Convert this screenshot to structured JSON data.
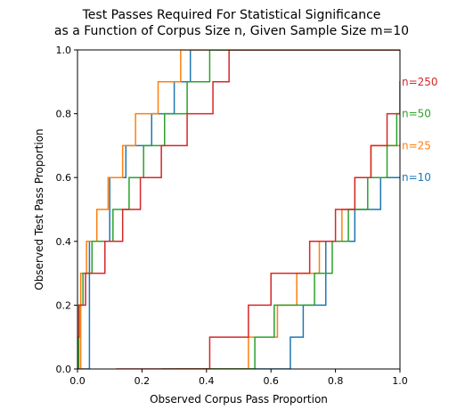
{
  "chart_data": {
    "type": "line",
    "title": "Test Passes Required For Statistical Significance",
    "subtitle": "as a Function of Corpus Size n, Given Sample Size m=10",
    "xlabel": "Observed Corpus Pass Proportion",
    "ylabel": "Observed Test Pass Proportion",
    "xlim": [
      0.0,
      1.0
    ],
    "ylim": [
      0.0,
      1.0
    ],
    "xticks": [
      "0.0",
      "0.2",
      "0.4",
      "0.6",
      "0.8",
      "1.0"
    ],
    "yticks": [
      "0.0",
      "0.2",
      "0.4",
      "0.6",
      "0.8",
      "1.0"
    ],
    "grid": false,
    "legend": "inline labels at right edge",
    "series": [
      {
        "name": "n=10",
        "color": "#1f77b4",
        "upper": {
          "breaks": [
            0.037,
            0.1,
            0.15,
            0.23,
            0.3,
            0.35
          ],
          "levels": [
            0.4,
            0.6,
            0.7,
            0.8,
            0.9,
            1.0
          ]
        },
        "lower": {
          "breaks": [
            0.54,
            0.66,
            0.7,
            0.77,
            0.86,
            0.94
          ],
          "levels": [
            0.0,
            0.1,
            0.2,
            0.4,
            0.5,
            0.6
          ]
        }
      },
      {
        "name": "n=25",
        "color": "#ff7f0e",
        "upper": {
          "breaks": [
            0.01,
            0.028,
            0.06,
            0.095,
            0.14,
            0.18,
            0.25,
            0.32,
            0.38
          ],
          "levels": [
            0.3,
            0.4,
            0.5,
            0.6,
            0.7,
            0.8,
            0.9,
            1.0,
            1.0
          ]
        },
        "lower": {
          "breaks": [
            0.45,
            0.53,
            0.62,
            0.68,
            0.75,
            0.82,
            0.86,
            0.91,
            0.975
          ],
          "levels": [
            0.0,
            0.1,
            0.2,
            0.3,
            0.4,
            0.5,
            0.6,
            0.7,
            0.7
          ]
        }
      },
      {
        "name": "n=50",
        "color": "#2ca02c",
        "upper": {
          "breaks": [
            0.004,
            0.017,
            0.045,
            0.11,
            0.16,
            0.205,
            0.27,
            0.34,
            0.41
          ],
          "levels": [
            0.2,
            0.3,
            0.4,
            0.5,
            0.6,
            0.7,
            0.8,
            0.9,
            1.0
          ]
        },
        "lower": {
          "breaks": [
            0.41,
            0.55,
            0.61,
            0.735,
            0.79,
            0.84,
            0.9,
            0.96,
            0.99
          ],
          "levels": [
            0.0,
            0.1,
            0.2,
            0.3,
            0.4,
            0.5,
            0.6,
            0.7,
            0.8
          ]
        }
      },
      {
        "name": "n=250",
        "color": "#d62728",
        "upper": {
          "breaks": [
            0.0,
            0.005,
            0.025,
            0.085,
            0.14,
            0.195,
            0.26,
            0.34,
            0.42,
            0.47
          ],
          "levels": [
            0.1,
            0.2,
            0.3,
            0.4,
            0.5,
            0.6,
            0.7,
            0.8,
            0.9,
            1.0
          ]
        },
        "lower": {
          "breaks": [
            0.27,
            0.41,
            0.53,
            0.6,
            0.72,
            0.8,
            0.86,
            0.91,
            0.96,
            1.0
          ],
          "levels": [
            0.0,
            0.1,
            0.2,
            0.3,
            0.4,
            0.5,
            0.6,
            0.7,
            0.8,
            0.9
          ]
        }
      }
    ]
  }
}
